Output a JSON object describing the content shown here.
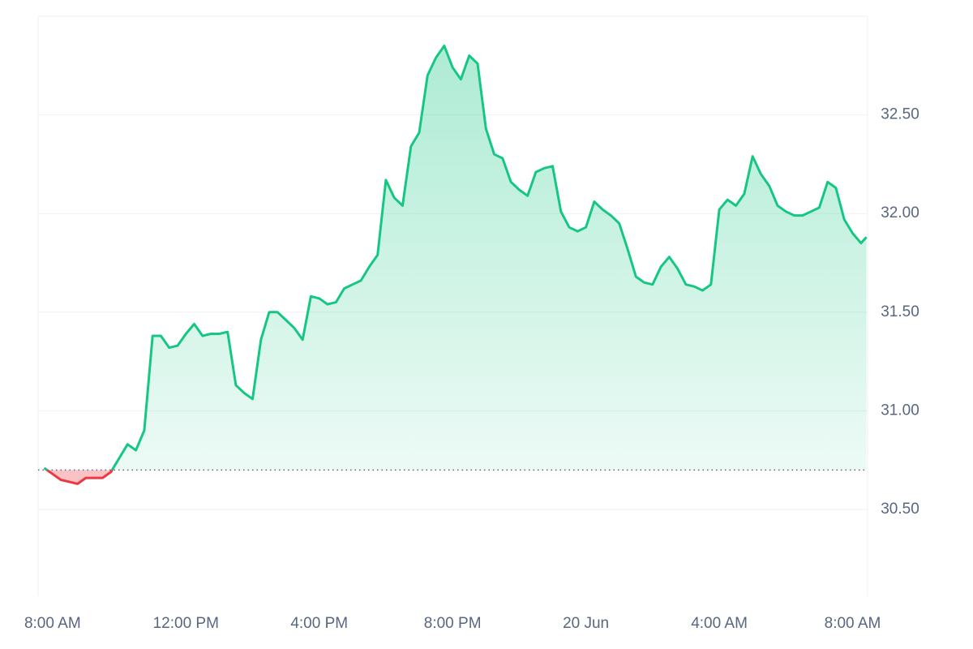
{
  "chart_data": {
    "type": "line",
    "x": [
      -15,
      0,
      15,
      30,
      45,
      60,
      75,
      90,
      105,
      120,
      135,
      150,
      165,
      180,
      195,
      210,
      225,
      240,
      255,
      270,
      285,
      300,
      315,
      330,
      345,
      360,
      375,
      390,
      405,
      420,
      435,
      450,
      465,
      480,
      495,
      510,
      525,
      540,
      555,
      570,
      585,
      600,
      615,
      630,
      645,
      660,
      675,
      690,
      705,
      720,
      735,
      750,
      765,
      780,
      795,
      810,
      825,
      840,
      855,
      870,
      885,
      900,
      915,
      930,
      945,
      960,
      975,
      990,
      1005,
      1020,
      1035,
      1050,
      1065,
      1080,
      1095,
      1110,
      1125,
      1140,
      1155,
      1170,
      1185,
      1200,
      1215,
      1230,
      1245,
      1260,
      1275,
      1290,
      1305,
      1320,
      1335,
      1350,
      1365,
      1380,
      1395,
      1410,
      1425,
      1440,
      1455,
      1465
    ],
    "series": [
      {
        "color": "#16c784",
        "below_color": "#ea3943",
        "values": [
          30.71,
          30.68,
          30.65,
          30.64,
          30.63,
          30.66,
          30.66,
          30.66,
          30.69,
          30.76,
          30.83,
          30.8,
          30.9,
          31.38,
          31.38,
          31.32,
          31.33,
          31.39,
          31.44,
          31.38,
          31.39,
          31.39,
          31.4,
          31.13,
          31.09,
          31.06,
          31.36,
          31.5,
          31.5,
          31.46,
          31.42,
          31.36,
          31.58,
          31.57,
          31.54,
          31.55,
          31.62,
          31.64,
          31.66,
          31.73,
          31.79,
          32.17,
          32.08,
          32.04,
          32.34,
          32.41,
          32.7,
          32.79,
          32.85,
          32.74,
          32.68,
          32.8,
          32.76,
          32.43,
          32.3,
          32.28,
          32.16,
          32.12,
          32.09,
          32.21,
          32.23,
          32.24,
          32.01,
          31.93,
          31.91,
          31.93,
          32.06,
          32.02,
          31.99,
          31.95,
          31.82,
          31.68,
          31.65,
          31.64,
          31.73,
          31.78,
          31.72,
          31.64,
          31.63,
          31.61,
          31.64,
          32.02,
          32.07,
          32.04,
          32.1,
          32.29,
          32.2,
          32.14,
          32.04,
          32.01,
          31.99,
          31.99,
          32.01,
          32.03,
          32.16,
          32.13,
          31.97,
          31.9,
          31.85,
          31.88
        ]
      }
    ],
    "reference": 30.7,
    "xlim": [
      -26,
      1467
    ],
    "ylim": [
      30.06,
      33.0
    ],
    "xticks": [
      {
        "value": 0,
        "label": "8:00 AM"
      },
      {
        "value": 240,
        "label": "12:00 PM"
      },
      {
        "value": 480,
        "label": "4:00 PM"
      },
      {
        "value": 720,
        "label": "8:00 PM"
      },
      {
        "value": 960,
        "label": "20 Jun"
      },
      {
        "value": 1200,
        "label": "4:00 AM"
      },
      {
        "value": 1440,
        "label": "8:00 AM"
      }
    ],
    "yticks": [
      {
        "value": 30.5,
        "label": "30.50"
      },
      {
        "value": 31,
        "label": "31.00"
      },
      {
        "value": 31.5,
        "label": "31.50"
      },
      {
        "value": 32,
        "label": "32.00"
      },
      {
        "value": 32.5,
        "label": "32.50"
      }
    ],
    "grid": true
  }
}
